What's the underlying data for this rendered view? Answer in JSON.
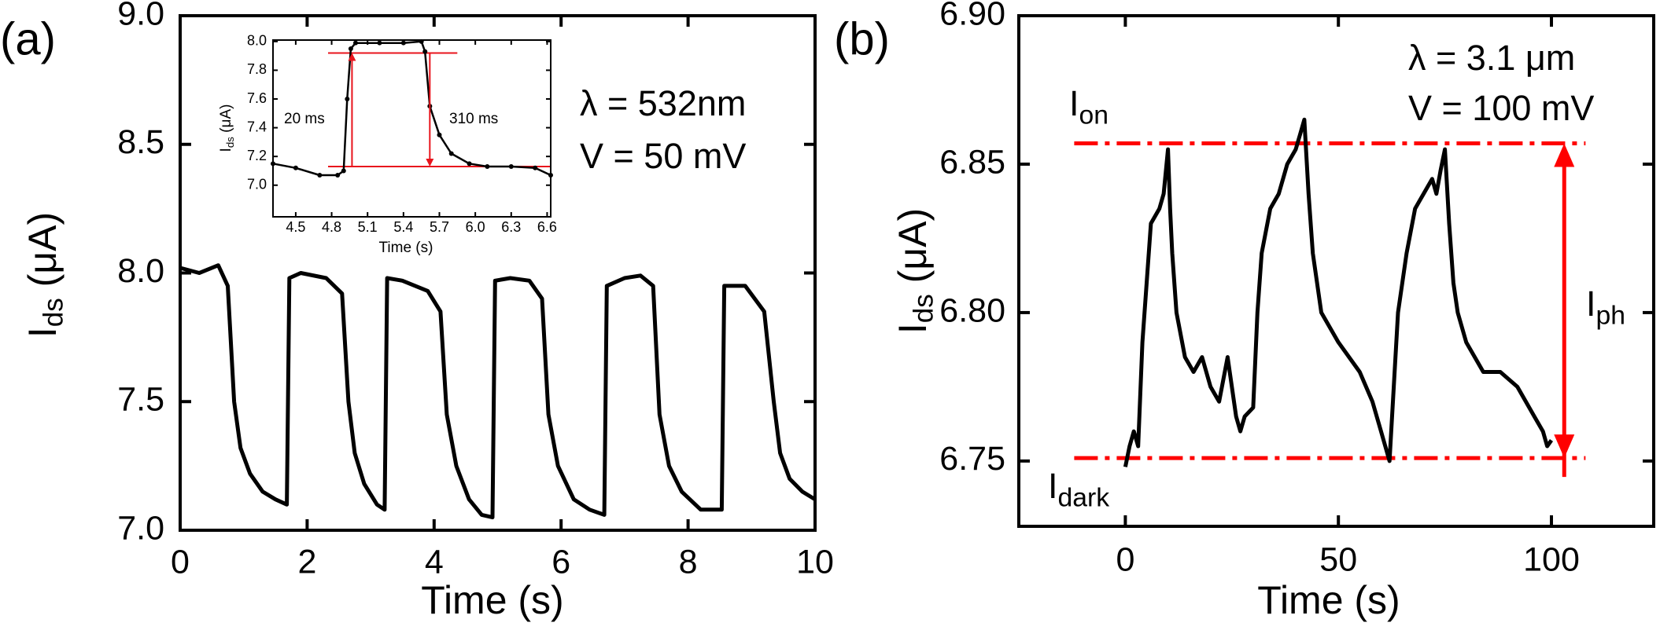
{
  "chart_data": [
    {
      "type": "line",
      "panel_label": "(a)",
      "xlabel": "Time (s)",
      "ylabel": {
        "main": "I",
        "sub": "ds",
        "rest": " (μA)"
      },
      "annotations": [
        {
          "text": "λ = 532nm"
        },
        {
          "text": "V = 50 mV"
        }
      ],
      "xlim": [
        0,
        10
      ],
      "xticks": [
        0,
        2,
        4,
        6,
        8,
        10
      ],
      "ylim": [
        7.0,
        9.0
      ],
      "yticks": [
        {
          "value": 7.0,
          "label": "7.0"
        },
        7.5,
        {
          "value": 8.0,
          "label": "8.0"
        },
        8.5,
        {
          "value": 9.0,
          "label": "9.0"
        }
      ],
      "series": [
        {
          "color": "#000000",
          "x": [
            0,
            0.3,
            0.6,
            0.75,
            0.85,
            0.95,
            1.1,
            1.3,
            1.5,
            1.68,
            1.72,
            1.9,
            2.3,
            2.55,
            2.65,
            2.75,
            2.9,
            3.1,
            3.22,
            3.26,
            3.5,
            3.9,
            4.1,
            4.2,
            4.35,
            4.55,
            4.75,
            4.92,
            4.96,
            5.2,
            5.5,
            5.7,
            5.8,
            5.95,
            6.2,
            6.45,
            6.68,
            6.72,
            7.0,
            7.25,
            7.45,
            7.55,
            7.7,
            7.9,
            8.2,
            8.53,
            8.57,
            8.9,
            9.2,
            9.35,
            9.45,
            9.6,
            9.8,
            10
          ],
          "values": [
            8.02,
            8.0,
            8.03,
            7.95,
            7.5,
            7.32,
            7.22,
            7.15,
            7.12,
            7.1,
            7.98,
            8.0,
            7.98,
            7.92,
            7.5,
            7.3,
            7.18,
            7.1,
            7.08,
            7.98,
            7.97,
            7.93,
            7.85,
            7.45,
            7.25,
            7.12,
            7.06,
            7.05,
            7.97,
            7.98,
            7.97,
            7.9,
            7.45,
            7.25,
            7.12,
            7.08,
            7.06,
            7.95,
            7.98,
            7.99,
            7.95,
            7.45,
            7.25,
            7.15,
            7.08,
            7.08,
            7.95,
            7.95,
            7.85,
            7.5,
            7.3,
            7.2,
            7.15,
            7.12
          ]
        }
      ]
    },
    {
      "type": "line",
      "xlabel": "Time (s)",
      "ylabel": {
        "main": "I",
        "sub": "ds",
        "rest": " (μA)"
      },
      "annotations": [
        {
          "text": "20 ms",
          "color": "#e8141c"
        },
        {
          "text": "310 ms",
          "color": "#e8141c"
        }
      ],
      "xlim": [
        4.31,
        6.63
      ],
      "xticks": [
        4.5,
        4.8,
        5.1,
        5.4,
        5.7,
        {
          "value": 6.0,
          "label": "6.0"
        },
        6.3,
        6.6
      ],
      "ylim": [
        6.78,
        8.01
      ],
      "yticks": [
        {
          "value": 7.0,
          "label": "7.0"
        },
        7.2,
        7.4,
        7.6,
        7.8,
        {
          "value": 8.0,
          "label": "8.0"
        }
      ],
      "markers": true,
      "ref_lines": [
        {
          "y": 7.92,
          "x": [
            4.77,
            5.85
          ],
          "color": "#e8141c"
        },
        {
          "y": 7.13,
          "x": [
            4.77,
            6.63
          ],
          "color": "#e8141c"
        }
      ],
      "arrows": [
        {
          "x": 4.97,
          "from": 7.13,
          "to": 7.92,
          "color": "#e8141c"
        },
        {
          "x": 5.62,
          "from": 7.92,
          "to": 7.13,
          "color": "#e8141c"
        }
      ],
      "series": [
        {
          "color": "#000000",
          "x": [
            4.31,
            4.5,
            4.7,
            4.85,
            4.9,
            4.93,
            4.96,
            5.0,
            5.2,
            5.4,
            5.55,
            5.58,
            5.62,
            5.7,
            5.8,
            5.95,
            6.1,
            6.3,
            6.5,
            6.63
          ],
          "values": [
            7.15,
            7.12,
            7.07,
            7.07,
            7.1,
            7.6,
            7.95,
            7.99,
            7.99,
            7.99,
            8.0,
            7.93,
            7.55,
            7.35,
            7.22,
            7.15,
            7.13,
            7.13,
            7.12,
            7.07
          ]
        }
      ]
    },
    {
      "type": "line",
      "panel_label": "(b)",
      "xlabel": "Time (s)",
      "ylabel": {
        "main": "I",
        "sub": "ds",
        "rest": " (μA)"
      },
      "annotations": [
        {
          "text": "λ = 3.1 μm"
        },
        {
          "text": "V = 100 mV"
        },
        {
          "text": "I",
          "sub": "on"
        },
        {
          "text": "I",
          "sub": "dark"
        },
        {
          "text": "I",
          "sub": "ph"
        }
      ],
      "xlim": [
        -25,
        124
      ],
      "xticks": [
        0,
        50,
        100
      ],
      "ylim": [
        6.728,
        6.9
      ],
      "yticks": [
        6.75,
        {
          "value": 6.8,
          "label": "6.80"
        },
        6.85,
        {
          "value": 6.9,
          "label": "6.90"
        }
      ],
      "ref_lines": [
        {
          "y": 6.857,
          "x": [
            -12,
            108
          ],
          "color": "#ff0000",
          "dashed": true
        },
        {
          "y": 6.751,
          "x": [
            -12,
            108
          ],
          "color": "#ff0000",
          "dashed": true
        }
      ],
      "arrows": [
        {
          "x": 103,
          "from": 6.751,
          "to": 6.857,
          "color": "#ff0000",
          "double": true
        }
      ],
      "series": [
        {
          "color": "#000000",
          "x": [
            0,
            1,
            2,
            3,
            4,
            5,
            6,
            8,
            9,
            10,
            10.5,
            11,
            12,
            14,
            16,
            18,
            20,
            22,
            24,
            26,
            27,
            28,
            30,
            31,
            32,
            34,
            36,
            38,
            40,
            41,
            42,
            43,
            44,
            46,
            50,
            55,
            58,
            60,
            61,
            62,
            63,
            64,
            66,
            68,
            70,
            72,
            73,
            74,
            75,
            76,
            77,
            78,
            80,
            84,
            88,
            92,
            96,
            98,
            99,
            100
          ],
          "values": [
            6.748,
            6.755,
            6.76,
            6.755,
            6.79,
            6.81,
            6.83,
            6.835,
            6.84,
            6.855,
            6.835,
            6.82,
            6.8,
            6.785,
            6.78,
            6.785,
            6.775,
            6.77,
            6.785,
            6.765,
            6.76,
            6.765,
            6.768,
            6.8,
            6.82,
            6.835,
            6.84,
            6.85,
            6.855,
            6.86,
            6.865,
            6.84,
            6.82,
            6.8,
            6.79,
            6.78,
            6.77,
            6.76,
            6.755,
            6.75,
            6.775,
            6.8,
            6.82,
            6.835,
            6.84,
            6.845,
            6.84,
            6.848,
            6.855,
            6.83,
            6.81,
            6.8,
            6.79,
            6.78,
            6.78,
            6.775,
            6.765,
            6.76,
            6.755,
            6.757
          ]
        }
      ]
    }
  ]
}
